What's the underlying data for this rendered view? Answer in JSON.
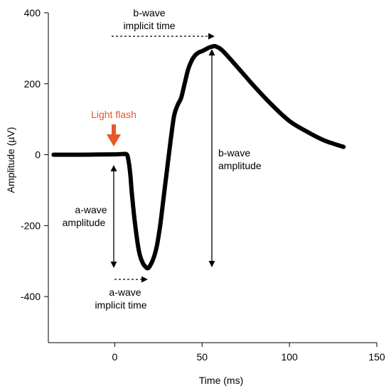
{
  "chart_data": {
    "type": "line",
    "xlabel": "Time (ms)",
    "ylabel": "Amplitude (µV)",
    "xlim": [
      -38,
      150
    ],
    "ylim": [
      -530,
      400
    ],
    "x_ticks": [
      0,
      50,
      100,
      150
    ],
    "y_ticks": [
      -400,
      -200,
      0,
      200,
      400
    ],
    "x_tick_labels": [
      "0",
      "50",
      "100",
      "150"
    ],
    "y_tick_labels": [
      "-400",
      "-200",
      "0",
      "200",
      "400"
    ],
    "grid": false,
    "series": [
      {
        "color": "#000000",
        "x": [
          -35,
          -20,
          0,
          5,
          7,
          8,
          9,
          10,
          12,
          14,
          16,
          18,
          19,
          20,
          22,
          24,
          26,
          28,
          30,
          32,
          34,
          36,
          38,
          40,
          42,
          44,
          46,
          48,
          50,
          52,
          54,
          56,
          57,
          58,
          60,
          62,
          65,
          70,
          75,
          80,
          90,
          100,
          110,
          120,
          131
        ],
        "y": [
          0,
          0,
          1,
          2,
          0,
          -20,
          -60,
          -120,
          -210,
          -275,
          -305,
          -318,
          -320,
          -315,
          -295,
          -260,
          -200,
          -120,
          -40,
          40,
          110,
          140,
          160,
          200,
          240,
          265,
          280,
          288,
          292,
          297,
          302,
          305,
          306,
          305,
          300,
          292,
          276,
          248,
          220,
          192,
          140,
          95,
          65,
          40,
          22
        ]
      }
    ],
    "annotations": {
      "flash_label": "Light flash",
      "flash_color": "#e8562a",
      "b_implicit_line1": "b-wave",
      "b_implicit_line2": "implicit time",
      "b_amp_line1": "b-wave",
      "b_amp_line2": "amplitude",
      "a_amp_line1": "a-wave",
      "a_amp_line2": "amplitude",
      "a_implicit_line1": "a-wave",
      "a_implicit_line2": "implicit time"
    }
  }
}
